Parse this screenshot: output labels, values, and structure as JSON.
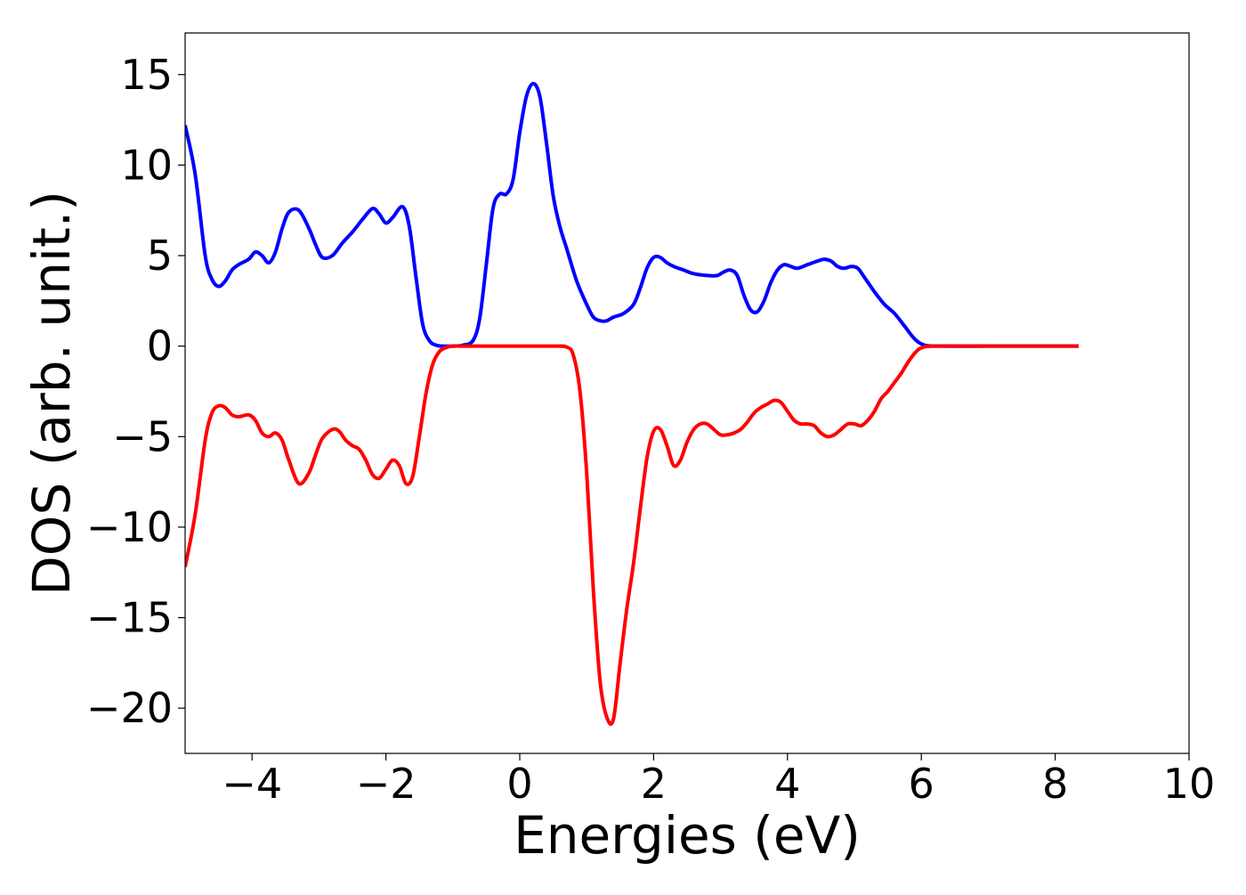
{
  "chart_data": {
    "type": "line",
    "title": "",
    "xlabel": "Energies (eV)",
    "ylabel": "DOS (arb. unit.)",
    "xlim": [
      -5,
      10
    ],
    "ylim": [
      -22.5,
      17.3
    ],
    "xticks": [
      -4,
      -2,
      0,
      2,
      4,
      6,
      8,
      10
    ],
    "xtick_labels": [
      "−4",
      "−2",
      "0",
      "2",
      "4",
      "6",
      "8",
      "10"
    ],
    "yticks": [
      15,
      10,
      5,
      0,
      -5,
      -10,
      -15,
      -20
    ],
    "ytick_labels": [
      "15",
      "10",
      "5",
      "0",
      "−5",
      "−10",
      "−15",
      "−20"
    ],
    "grid": false,
    "legend": "none",
    "series": [
      {
        "color": "#0000ff",
        "x": [
          -5.0,
          -4.85,
          -4.7,
          -4.6,
          -4.5,
          -4.4,
          -4.3,
          -4.2,
          -4.05,
          -3.95,
          -3.85,
          -3.75,
          -3.65,
          -3.55,
          -3.45,
          -3.3,
          -3.15,
          -3.05,
          -2.95,
          -2.8,
          -2.65,
          -2.5,
          -2.35,
          -2.2,
          -2.1,
          -2.0,
          -1.9,
          -1.75,
          -1.65,
          -1.55,
          -1.45,
          -1.35,
          -1.25,
          -1.15,
          -1.0,
          -0.85,
          -0.7,
          -0.6,
          -0.5,
          -0.4,
          -0.3,
          -0.2,
          -0.1,
          0.0,
          0.1,
          0.2,
          0.3,
          0.4,
          0.5,
          0.6,
          0.7,
          0.85,
          1.0,
          1.1,
          1.2,
          1.3,
          1.4,
          1.55,
          1.7,
          1.8,
          1.9,
          2.0,
          2.1,
          2.2,
          2.3,
          2.45,
          2.6,
          2.8,
          2.95,
          3.05,
          3.15,
          3.25,
          3.35,
          3.45,
          3.55,
          3.65,
          3.75,
          3.85,
          3.95,
          4.05,
          4.15,
          4.3,
          4.45,
          4.55,
          4.65,
          4.75,
          4.85,
          4.95,
          5.05,
          5.15,
          5.3,
          5.45,
          5.6,
          5.75,
          5.9,
          6.05,
          6.3,
          7.0,
          8.0,
          8.35
        ],
        "y": [
          12.2,
          9.5,
          5.0,
          3.7,
          3.3,
          3.6,
          4.2,
          4.5,
          4.8,
          5.2,
          5.0,
          4.6,
          5.2,
          6.5,
          7.4,
          7.5,
          6.5,
          5.6,
          4.9,
          5.0,
          5.7,
          6.3,
          7.0,
          7.6,
          7.3,
          6.8,
          7.1,
          7.7,
          6.6,
          3.8,
          1.2,
          0.3,
          0.05,
          0.0,
          0.0,
          0.05,
          0.3,
          1.5,
          4.5,
          7.6,
          8.4,
          8.4,
          9.2,
          11.8,
          13.8,
          14.5,
          13.8,
          11.2,
          8.3,
          6.6,
          5.4,
          3.6,
          2.3,
          1.6,
          1.4,
          1.4,
          1.6,
          1.8,
          2.3,
          3.2,
          4.3,
          4.9,
          4.9,
          4.6,
          4.4,
          4.2,
          4.0,
          3.9,
          3.9,
          4.1,
          4.2,
          3.9,
          2.8,
          2.0,
          1.9,
          2.5,
          3.5,
          4.2,
          4.5,
          4.4,
          4.3,
          4.5,
          4.7,
          4.8,
          4.7,
          4.4,
          4.3,
          4.4,
          4.3,
          3.8,
          3.0,
          2.3,
          1.8,
          1.1,
          0.4,
          0.05,
          0.0,
          0.0,
          0.0,
          0.0
        ]
      },
      {
        "color": "#ff0000",
        "x": [
          -5.0,
          -4.85,
          -4.7,
          -4.6,
          -4.5,
          -4.4,
          -4.3,
          -4.2,
          -4.05,
          -3.95,
          -3.85,
          -3.75,
          -3.65,
          -3.55,
          -3.45,
          -3.3,
          -3.15,
          -3.05,
          -2.95,
          -2.8,
          -2.7,
          -2.6,
          -2.5,
          -2.4,
          -2.3,
          -2.2,
          -2.1,
          -2.0,
          -1.9,
          -1.8,
          -1.7,
          -1.6,
          -1.5,
          -1.4,
          -1.3,
          -1.2,
          -1.1,
          -1.0,
          -0.8,
          -0.5,
          0.0,
          0.5,
          0.7,
          0.8,
          0.9,
          1.0,
          1.1,
          1.2,
          1.3,
          1.4,
          1.5,
          1.6,
          1.7,
          1.8,
          1.9,
          2.0,
          2.1,
          2.2,
          2.3,
          2.4,
          2.5,
          2.6,
          2.7,
          2.8,
          2.9,
          3.0,
          3.1,
          3.2,
          3.3,
          3.4,
          3.5,
          3.6,
          3.7,
          3.8,
          3.9,
          4.0,
          4.1,
          4.2,
          4.3,
          4.4,
          4.5,
          4.6,
          4.7,
          4.8,
          4.9,
          5.0,
          5.1,
          5.2,
          5.3,
          5.4,
          5.5,
          5.6,
          5.7,
          5.8,
          5.9,
          6.0,
          6.2,
          7.0,
          8.0,
          8.35
        ],
        "y": [
          -12.2,
          -9.3,
          -5.2,
          -3.7,
          -3.3,
          -3.4,
          -3.8,
          -3.9,
          -3.8,
          -4.1,
          -4.8,
          -5.0,
          -4.8,
          -5.2,
          -6.3,
          -7.6,
          -7.0,
          -6.0,
          -5.1,
          -4.6,
          -4.7,
          -5.2,
          -5.5,
          -5.7,
          -6.3,
          -7.1,
          -7.3,
          -6.8,
          -6.3,
          -6.6,
          -7.6,
          -7.2,
          -5.0,
          -2.6,
          -1.0,
          -0.3,
          -0.08,
          0.0,
          0.0,
          0.0,
          0.0,
          0.0,
          -0.05,
          -0.5,
          -2.5,
          -7.0,
          -13.5,
          -18.5,
          -20.5,
          -20.6,
          -17.5,
          -14.5,
          -12.0,
          -9.0,
          -6.2,
          -4.7,
          -4.6,
          -5.5,
          -6.6,
          -6.3,
          -5.3,
          -4.6,
          -4.3,
          -4.3,
          -4.6,
          -4.9,
          -4.9,
          -4.8,
          -4.6,
          -4.2,
          -3.7,
          -3.4,
          -3.2,
          -3.0,
          -3.1,
          -3.6,
          -4.1,
          -4.3,
          -4.3,
          -4.4,
          -4.8,
          -5.0,
          -4.9,
          -4.6,
          -4.3,
          -4.3,
          -4.4,
          -4.1,
          -3.6,
          -2.9,
          -2.5,
          -2.0,
          -1.5,
          -0.9,
          -0.4,
          -0.1,
          0.0,
          0.0,
          0.0,
          0.0
        ]
      }
    ]
  }
}
